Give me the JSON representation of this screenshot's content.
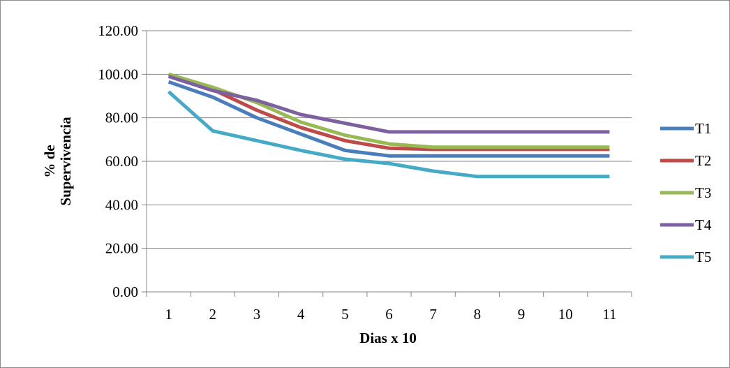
{
  "chart_data": {
    "type": "line",
    "title": "",
    "xlabel": "Dias x 10",
    "ylabel_lines": [
      "% de",
      "Supervivencia"
    ],
    "categories": [
      "1",
      "2",
      "3",
      "4",
      "5",
      "6",
      "7",
      "8",
      "9",
      "10",
      "11"
    ],
    "ylim": [
      0,
      120
    ],
    "yticks": [
      0,
      20,
      40,
      60,
      80,
      100,
      120
    ],
    "ytick_labels": [
      "0.00",
      "20.00",
      "40.00",
      "60.00",
      "80.00",
      "100.00",
      "120.00"
    ],
    "grid": "horizontal",
    "legend_position": "right",
    "series": [
      {
        "name": "T1",
        "color": "#4a7ebb",
        "values": [
          96.5,
          89.5,
          80,
          72.5,
          65,
          62.5,
          62.5,
          62.5,
          62.5,
          62.5,
          62.5
        ]
      },
      {
        "name": "T2",
        "color": "#be4b48",
        "values": [
          100,
          93,
          83.5,
          75.5,
          69.5,
          66,
          65.5,
          65.5,
          65.5,
          65.5,
          65.5
        ]
      },
      {
        "name": "T3",
        "color": "#98b954",
        "values": [
          100,
          94,
          87,
          78,
          72,
          68,
          66.5,
          66.5,
          66.5,
          66.5,
          66.5
        ]
      },
      {
        "name": "T4",
        "color": "#7d60a0",
        "values": [
          99,
          92.5,
          88,
          81.5,
          77.5,
          73.5,
          73.5,
          73.5,
          73.5,
          73.5,
          73.5
        ]
      },
      {
        "name": "T5",
        "color": "#46aac5",
        "values": [
          92,
          74,
          69.5,
          65,
          61,
          59,
          55.5,
          53,
          53,
          53,
          53
        ]
      }
    ]
  }
}
